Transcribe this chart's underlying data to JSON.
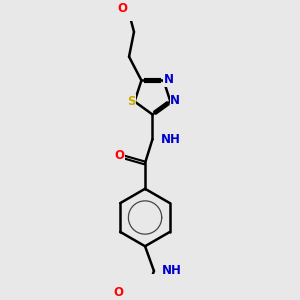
{
  "bg_color": "#e8e8e8",
  "bond_color": "#000000",
  "bond_width": 1.8,
  "atom_colors": {
    "C": "#000000",
    "N": "#0000cd",
    "O": "#ff0000",
    "S": "#ccaa00",
    "H": "#4a9a9a"
  },
  "font_size": 8.5,
  "fig_width": 3.0,
  "fig_height": 3.0,
  "dpi": 100
}
